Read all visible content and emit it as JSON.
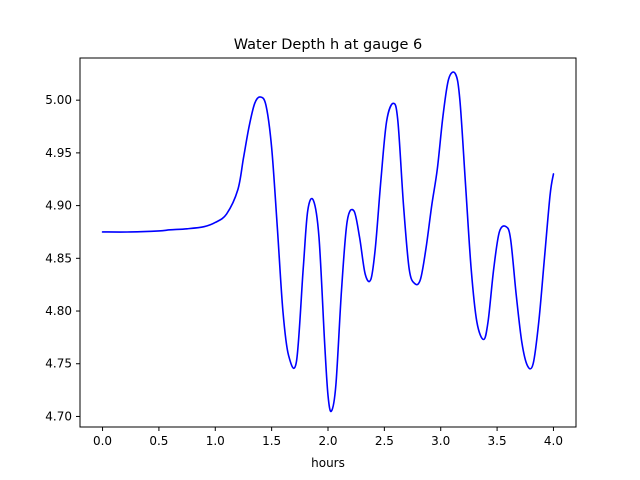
{
  "chart_data": {
    "type": "line",
    "title": "Water Depth h at gauge 6",
    "xlabel": "hours",
    "ylabel": "",
    "xlim": [
      -0.2,
      4.2
    ],
    "ylim": [
      4.69,
      5.04
    ],
    "xticks": [
      0.0,
      0.5,
      1.0,
      1.5,
      2.0,
      2.5,
      3.0,
      3.5,
      4.0
    ],
    "xtick_labels": [
      "0.0",
      "0.5",
      "1.0",
      "1.5",
      "2.0",
      "2.5",
      "3.0",
      "3.5",
      "4.0"
    ],
    "yticks": [
      4.7,
      4.75,
      4.8,
      4.85,
      4.9,
      4.95,
      5.0
    ],
    "ytick_labels": [
      "4.70",
      "4.75",
      "4.80",
      "4.85",
      "4.90",
      "4.95",
      "5.00"
    ],
    "grid": false,
    "legend": "none",
    "series": [
      {
        "color": "#0000ff",
        "x": [
          0.0,
          0.25,
          0.5,
          0.6,
          0.75,
          0.9,
          1.0,
          1.1,
          1.2,
          1.25,
          1.3,
          1.35,
          1.4,
          1.45,
          1.5,
          1.55,
          1.6,
          1.65,
          1.72,
          1.78,
          1.82,
          1.87,
          1.92,
          1.97,
          2.0,
          2.03,
          2.07,
          2.12,
          2.17,
          2.23,
          2.28,
          2.33,
          2.38,
          2.42,
          2.47,
          2.52,
          2.58,
          2.62,
          2.67,
          2.72,
          2.77,
          2.82,
          2.87,
          2.92,
          2.97,
          3.02,
          3.07,
          3.13,
          3.17,
          3.22,
          3.27,
          3.32,
          3.38,
          3.42,
          3.47,
          3.52,
          3.58,
          3.62,
          3.67,
          3.72,
          3.77,
          3.82,
          3.87,
          3.92,
          3.97,
          4.0
        ],
        "y": [
          4.875,
          4.875,
          4.876,
          4.877,
          4.878,
          4.88,
          4.884,
          4.892,
          4.915,
          4.945,
          4.975,
          4.997,
          5.003,
          4.995,
          4.955,
          4.88,
          4.8,
          4.758,
          4.752,
          4.84,
          4.895,
          4.905,
          4.87,
          4.77,
          4.72,
          4.705,
          4.73,
          4.82,
          4.885,
          4.895,
          4.87,
          4.835,
          4.83,
          4.86,
          4.925,
          4.98,
          4.997,
          4.98,
          4.9,
          4.84,
          4.826,
          4.83,
          4.86,
          4.9,
          4.935,
          4.985,
          5.02,
          5.025,
          5.0,
          4.92,
          4.84,
          4.79,
          4.773,
          4.79,
          4.84,
          4.875,
          4.88,
          4.868,
          4.815,
          4.77,
          4.748,
          4.75,
          4.79,
          4.85,
          4.91,
          4.93
        ]
      }
    ]
  }
}
